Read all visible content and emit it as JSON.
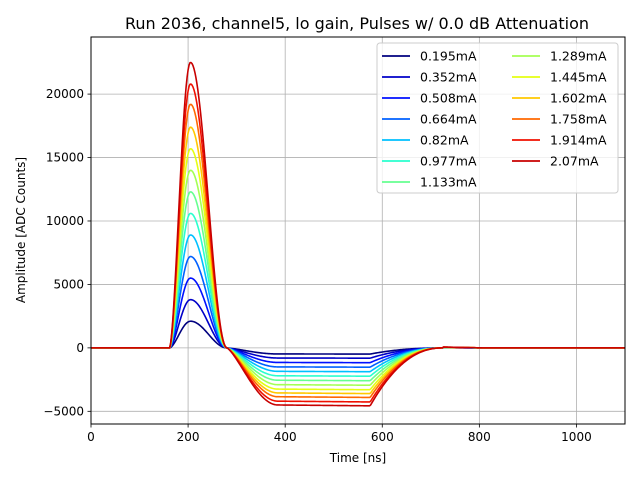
{
  "chart_data": {
    "type": "line",
    "title": "Run 2036, channel5, lo gain, Pulses w/ 0.0 dB Attenuation",
    "xlabel": "Time [ns]",
    "ylabel": "Amplitude [ADC Counts]",
    "xlim": [
      0,
      1100
    ],
    "ylim": [
      -6000,
      24500
    ],
    "xticks": [
      0,
      200,
      400,
      600,
      800,
      1000
    ],
    "xtick_labels": [
      "0",
      "200",
      "400",
      "600",
      "800",
      "1000"
    ],
    "yticks": [
      -5000,
      0,
      5000,
      10000,
      15000,
      20000
    ],
    "ytick_labels": [
      "−5000",
      "0",
      "5000",
      "10000",
      "15000",
      "20000"
    ],
    "grid": true,
    "legend_position": "top-right",
    "legend_columns": 2,
    "series": [
      {
        "name": "0.195mA",
        "color": "#00007f",
        "peak": 2100,
        "trough": -480
      },
      {
        "name": "0.352mA",
        "color": "#0000c8",
        "peak": 3800,
        "trough": -800
      },
      {
        "name": "0.508mA",
        "color": "#0010ff",
        "peak": 5500,
        "trough": -1150
      },
      {
        "name": "0.664mA",
        "color": "#0060ff",
        "peak": 7200,
        "trough": -1500
      },
      {
        "name": "0.82mA",
        "color": "#00c0ff",
        "peak": 8900,
        "trough": -1850
      },
      {
        "name": "0.977mA",
        "color": "#2affce",
        "peak": 10600,
        "trough": -2200
      },
      {
        "name": "1.133mA",
        "color": "#66ff90",
        "peak": 12300,
        "trough": -2550
      },
      {
        "name": "1.289mA",
        "color": "#a4ff53",
        "peak": 14000,
        "trough": -2900
      },
      {
        "name": "1.445mA",
        "color": "#e4ff13",
        "peak": 15700,
        "trough": -3250
      },
      {
        "name": "1.602mA",
        "color": "#ffc800",
        "peak": 17400,
        "trough": -3550
      },
      {
        "name": "1.758mA",
        "color": "#ff6800",
        "peak": 19200,
        "trough": -3850
      },
      {
        "name": "1.914mA",
        "color": "#f01000",
        "peak": 20800,
        "trough": -4200
      },
      {
        "name": "2.07mA",
        "color": "#c80000",
        "peak": 22500,
        "trough": -4500
      }
    ]
  }
}
